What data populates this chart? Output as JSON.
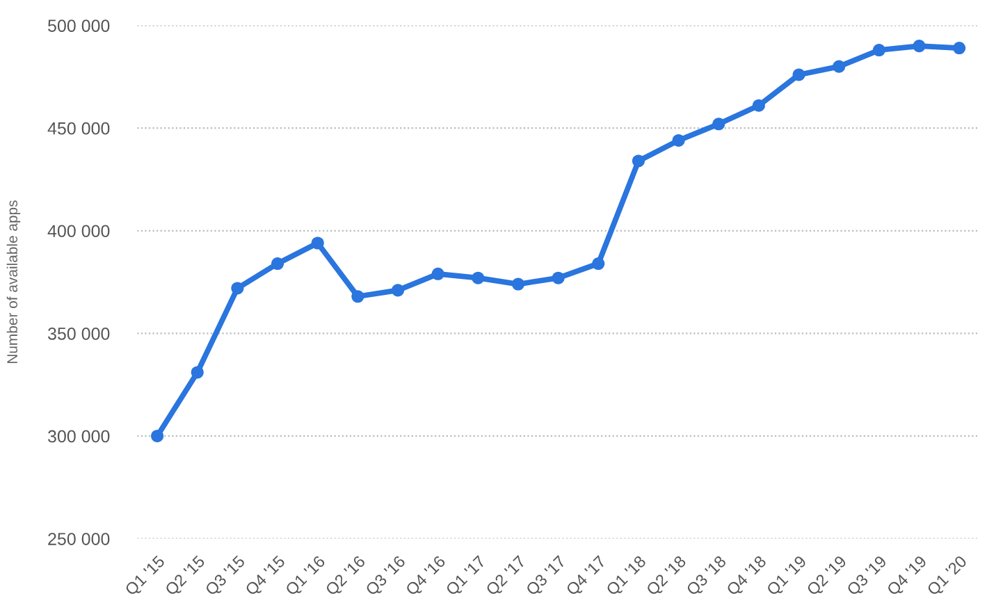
{
  "chart_data": {
    "type": "line",
    "ylabel": "Number of available apps",
    "categories": [
      "Q1 '15",
      "Q2 '15",
      "Q3 '15",
      "Q4 '15",
      "Q1 '16",
      "Q2 '16",
      "Q3 '16",
      "Q4 '16",
      "Q1 '17",
      "Q2 '17",
      "Q3 '17",
      "Q4 '17",
      "Q1 '18",
      "Q2 '18",
      "Q3 '18",
      "Q4 '18",
      "Q1 '19",
      "Q2 '19",
      "Q3 '19",
      "Q4 '19",
      "Q1 '20"
    ],
    "series": [
      {
        "color": "#2a75de",
        "values": [
          300000,
          331000,
          372000,
          384000,
          394000,
          368000,
          371000,
          379000,
          377000,
          374000,
          377000,
          384000,
          434000,
          444000,
          452000,
          461000,
          476000,
          480000,
          488000,
          490000,
          489000
        ]
      }
    ],
    "ylim": [
      250000,
      500000
    ],
    "yticks": [
      {
        "value": 250000,
        "label": "250 000"
      },
      {
        "value": 300000,
        "label": "300 000"
      },
      {
        "value": 350000,
        "label": "350 000"
      },
      {
        "value": 400000,
        "label": "400 000"
      },
      {
        "value": 450000,
        "label": "450 000"
      },
      {
        "value": 500000,
        "label": "500 000"
      }
    ],
    "grid": "y",
    "marker": "circle",
    "line_style": "solid"
  }
}
